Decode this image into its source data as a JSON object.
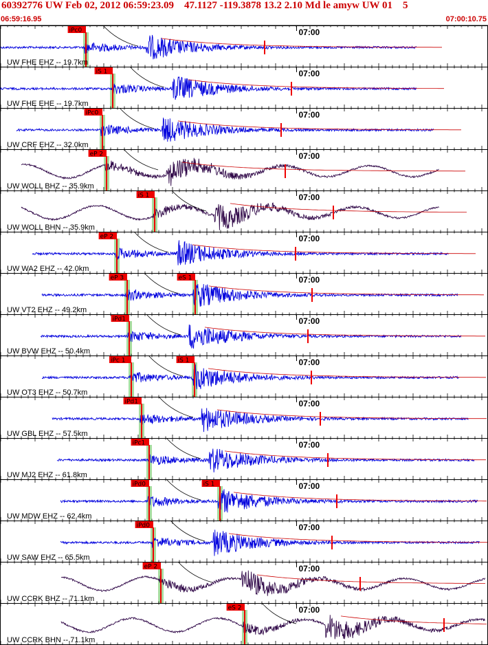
{
  "header": {
    "title": "60392776 UW Feb 02, 2012 06:59:23.09    47.1127 -119.3878 13.2 2.10 Md le amyw UW 01    5",
    "start_time": "06:59:16.95",
    "end_time": "07:00:10.75"
  },
  "colors": {
    "header_red": "#cc0000",
    "pick_red": "#ee0000",
    "pick_window_green": "#a8dca0",
    "trace_blue": "#0000dd",
    "trace_dark": "#300848",
    "coda_red": "#cc0000"
  },
  "chart_data": {
    "type": "line",
    "description_axis": "time",
    "x_start": "06:59:16.95",
    "x_end": "07:00:10.75",
    "minute_mark": "07:00",
    "panels": [
      {
        "label": "UW FHE EHZ -- 19.7km",
        "picks": [
          {
            "text": "iPc0",
            "t": 12.4
          }
        ],
        "trace_color": "dark-blue",
        "extent": [
          0,
          60.5
        ]
      },
      {
        "label": "UW FHE EHE -- 19.7km",
        "picks": [
          {
            "text": "iS 1",
            "t": 16.3
          }
        ],
        "trace_color": "dark-blue",
        "extent": [
          0,
          60.5
        ]
      },
      {
        "label": "UW CRF EHZ -- 32.0km",
        "picks": [
          {
            "text": "iPc0",
            "t": 14.8
          }
        ],
        "trace_color": "dark-blue",
        "extent": [
          2.3,
          63.0
        ]
      },
      {
        "label": "UW WOLL BHZ -- 35.9km",
        "picks": [
          {
            "text": "eP 2",
            "t": 15.4
          }
        ],
        "trace_color": "dark-purple",
        "extent": [
          3.0,
          63.8
        ]
      },
      {
        "label": "UW WOLL BHN -- 35.9km",
        "picks": [
          {
            "text": "iS 1",
            "t": 22.4
          }
        ],
        "trace_color": "dark-purple",
        "extent": [
          3.0,
          63.8
        ]
      },
      {
        "label": "UW WA2 EHZ -- 42.0km",
        "picks": [
          {
            "text": "eP 2",
            "t": 16.9
          }
        ],
        "trace_color": "dark-blue",
        "extent": [
          4.6,
          65.2
        ]
      },
      {
        "label": "UW VT2 EHZ -- 49.2km",
        "picks": [
          {
            "text": "eP 3",
            "t": 18.4
          },
          {
            "text": "eS 1",
            "t": 28.3
          }
        ],
        "trace_color": "dark-blue",
        "extent": [
          6.0,
          66.5
        ]
      },
      {
        "label": "UW BVW EHZ -- 50.4km",
        "picks": [
          {
            "text": "iPd1",
            "t": 18.7
          }
        ],
        "trace_color": "dark-blue",
        "extent": [
          5.8,
          67.0
        ]
      },
      {
        "label": "UW OT3 EHZ -- 50.7km",
        "picks": [
          {
            "text": "iPc 1",
            "t": 19.0
          },
          {
            "text": "iS 1",
            "t": 28.2
          }
        ],
        "trace_color": "dark-blue",
        "extent": [
          6.0,
          66.7
        ]
      },
      {
        "label": "UW GBL EHZ -- 57.5km",
        "picks": [
          {
            "text": "iPd1",
            "t": 20.5
          }
        ],
        "trace_color": "dark-blue",
        "extent": [
          7.5,
          68.1
        ]
      },
      {
        "label": "UW MJ2 EHZ -- 61.8km",
        "picks": [
          {
            "text": "iPc1",
            "t": 21.6
          }
        ],
        "trace_color": "dark-blue",
        "extent": [
          8.2,
          68.9
        ]
      },
      {
        "label": "UW MDW EHZ -- 62.4km",
        "picks": [
          {
            "text": "iPd0",
            "t": 21.6
          },
          {
            "text": "iS 1",
            "t": 31.9
          }
        ],
        "trace_color": "dark-blue",
        "extent": [
          8.7,
          69.4
        ]
      },
      {
        "label": "UW SAW EHZ -- 65.5km",
        "picks": [
          {
            "text": "iPd0",
            "t": 22.2
          }
        ],
        "trace_color": "dark-blue",
        "extent": [
          8.7,
          69.7
        ]
      },
      {
        "label": "UW CCRK BHZ -- 71.1km",
        "picks": [
          {
            "text": "eP 2",
            "t": 23.3
          }
        ],
        "trace_color": "dark-purple",
        "extent": [
          8.8,
          70.5
        ]
      },
      {
        "label": "UW CCRK BHN -- 71.1km",
        "picks": [
          {
            "text": "eS 2",
            "t": 35.5
          }
        ],
        "trace_color": "dark-purple",
        "extent": [
          8.8,
          70.5
        ]
      }
    ]
  }
}
